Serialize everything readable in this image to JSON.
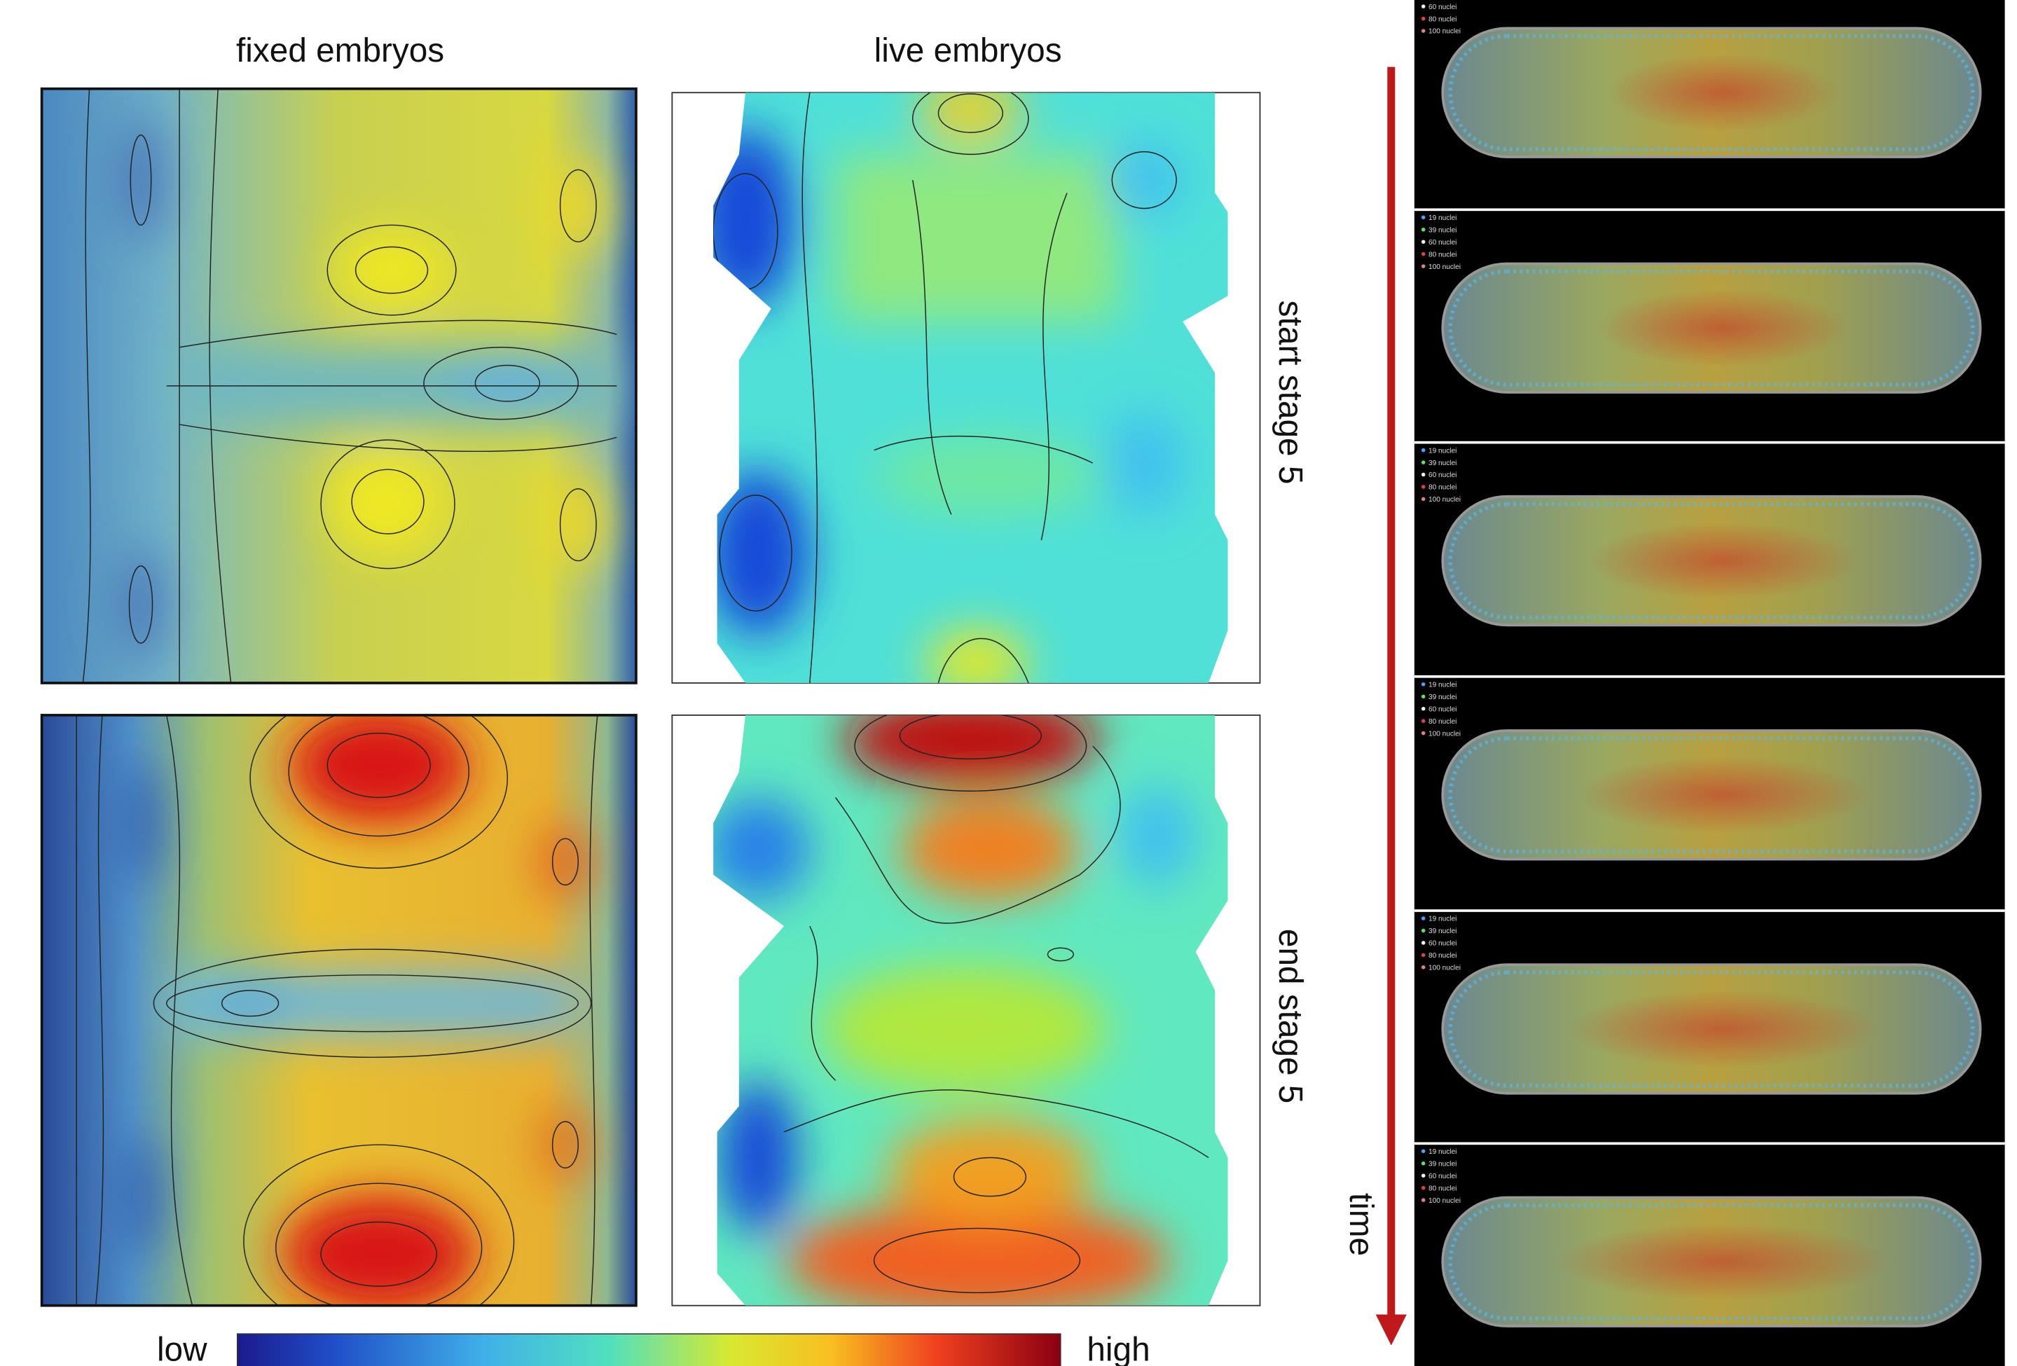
{
  "columns": [
    "fixed embryos",
    "live embryos"
  ],
  "rows": [
    "start stage 5",
    "end stage 5"
  ],
  "colorbar": {
    "low": "low",
    "high": "high"
  },
  "time_label": "time",
  "snapshot_legend": [
    "19 nuclei",
    "39 nuclei",
    "60 nuclei",
    "80 nuclei",
    "100 nuclei"
  ]
}
